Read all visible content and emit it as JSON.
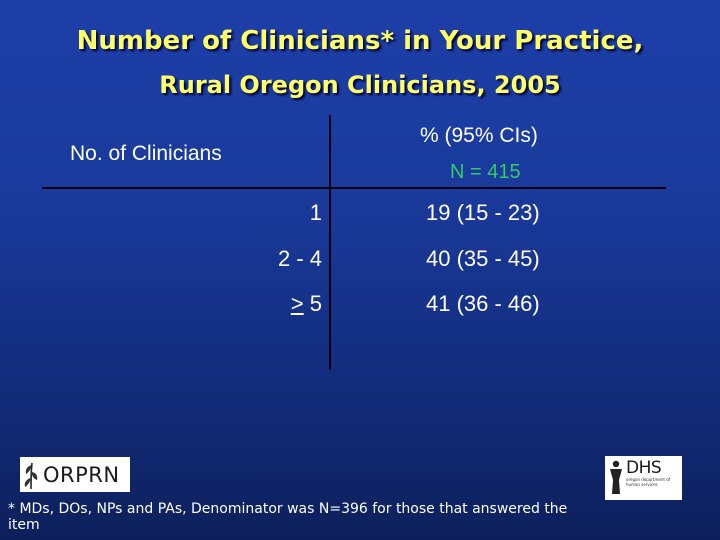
{
  "title": {
    "line1": "Number of Clinicians* in Your Practice,",
    "line2": "Rural Oregon Clinicians, 2005"
  },
  "table": {
    "col_left_header": "No. of Clinicians",
    "col_right_header": "% (95% CIs)",
    "n_label": "N = 415",
    "rows": [
      {
        "count": "1",
        "pct": "19 (15 - 23)"
      },
      {
        "count": "2 - 4",
        "pct": "40 (35 - 45)"
      },
      {
        "count_symbol": ">",
        "count_value": "5",
        "pct": "41 (36 - 46)"
      }
    ]
  },
  "logos": {
    "left": "ORPRN",
    "right": "DHS",
    "right_sub": "oregon department of human services"
  },
  "footnote": "* MDs, DOs, NPs and PAs, Denominator was N=396 for those that answered the item",
  "colors": {
    "title": "#ffff66",
    "n_label": "#33cc66",
    "background": "#1a3a9c"
  }
}
